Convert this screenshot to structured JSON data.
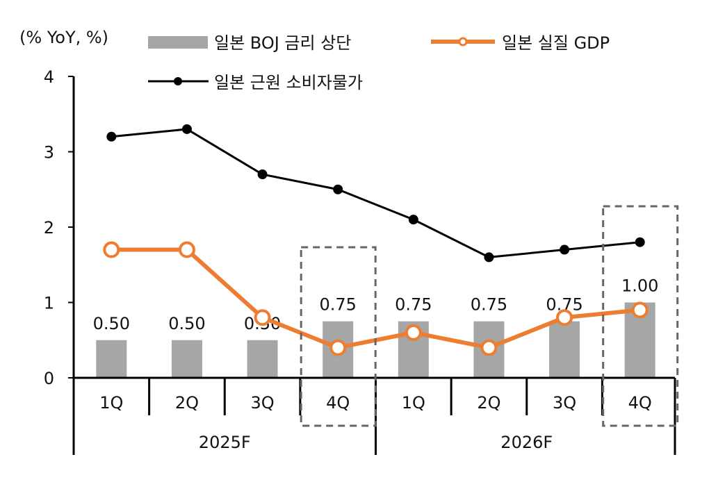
{
  "chart_data": {
    "type": "bar+line",
    "unit_label": "(% YoY, %)",
    "categories": [
      "1Q",
      "2Q",
      "3Q",
      "4Q",
      "1Q",
      "2Q",
      "3Q",
      "4Q"
    ],
    "groups": [
      {
        "label": "2025F",
        "span": 4
      },
      {
        "label": "2026F",
        "span": 4
      }
    ],
    "ylim": [
      0,
      4
    ],
    "yticks": [
      "0",
      "1",
      "2",
      "3",
      "4"
    ],
    "grid": false,
    "legend_placement": "top",
    "series": [
      {
        "name": "일본 BOJ 금리 상단",
        "type": "bar",
        "color": "#a6a6a6",
        "values": [
          0.5,
          0.5,
          0.5,
          0.75,
          0.75,
          0.75,
          0.75,
          1.0
        ],
        "labels": [
          "0.50",
          "0.50",
          "0.50",
          "0.75",
          "0.75",
          "0.75",
          "0.75",
          "1.00"
        ]
      },
      {
        "name": "일본 실질 GDP",
        "type": "line",
        "color": "#ed7d31",
        "marker": "open-circle",
        "values": [
          1.7,
          1.7,
          0.8,
          0.4,
          0.6,
          0.4,
          0.8,
          0.9
        ]
      },
      {
        "name": "일본 근원 소비자물가",
        "type": "line",
        "color": "#000000",
        "marker": "filled-circle",
        "values": [
          3.2,
          3.3,
          2.7,
          2.5,
          2.1,
          1.6,
          1.7,
          1.8
        ]
      }
    ],
    "highlighted_categories": [
      3,
      7
    ]
  }
}
